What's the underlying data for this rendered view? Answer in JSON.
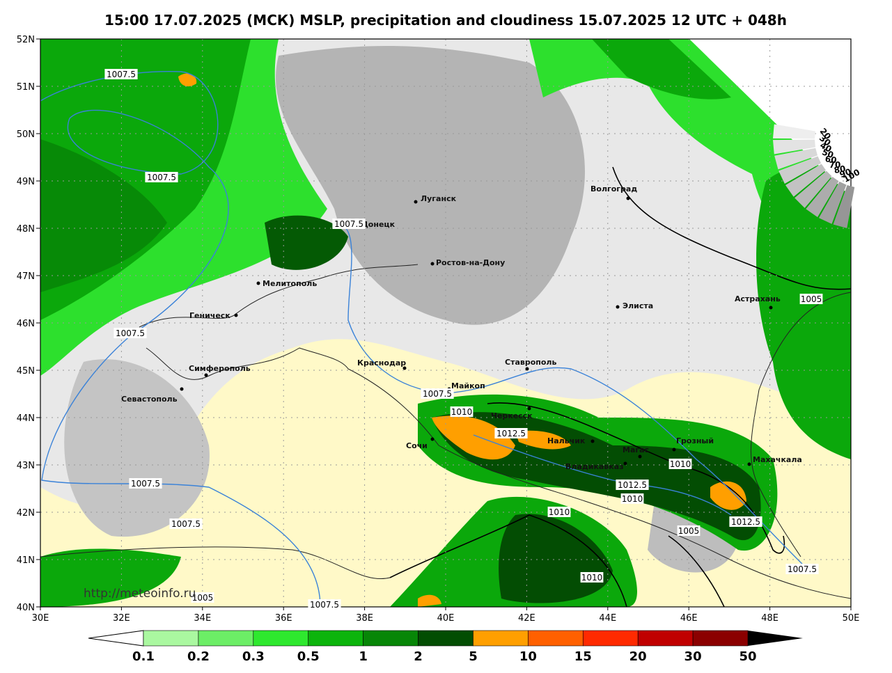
{
  "title": "15:00 17.07.2025 (МСК) MSLP, precipitation and cloudiness 15.07.2025 12 UTC + 048h",
  "lat_labels": [
    "40N",
    "41N",
    "42N",
    "43N",
    "44N",
    "45N",
    "46N",
    "47N",
    "48N",
    "49N",
    "50N",
    "51N",
    "52N"
  ],
  "lon_labels": [
    "30E",
    "32E",
    "34E",
    "36E",
    "38E",
    "40E",
    "42E",
    "44E",
    "46E",
    "48E",
    "50E"
  ],
  "cities": [
    "Луганск",
    "Донецк",
    "Ростов-на-Дону",
    "Мелитополь",
    "Геническ",
    "Симферополь",
    "Севастополь",
    "Краснодар",
    "Майкоп",
    "Ставрополь",
    "Черкесск",
    "Сочи",
    "Нальчик",
    "Магас",
    "Грозный",
    "Владикавказ",
    "Махачкала",
    "Элиста",
    "Астрахань",
    "Волгоград"
  ],
  "isobars": [
    "1007.5",
    "1007.5",
    "1007.5",
    "1007.5",
    "1007.5",
    "1007.5",
    "1007.5",
    "1007.5",
    "1007.5",
    "1010",
    "1010",
    "1010",
    "1010",
    "1010",
    "1012.5",
    "1012.5",
    "1012.5",
    "1005",
    "1005",
    "1005"
  ],
  "precip_legend": [
    "0.1",
    "0.2",
    "0.3",
    "0.5",
    "1",
    "2",
    "5",
    "10",
    "15",
    "20",
    "30",
    "50"
  ],
  "cloud_legend": [
    "100",
    "90",
    "80",
    "70",
    "60",
    "50",
    "40",
    "30",
    "20"
  ],
  "watermark": "http://meteoinfo.ru"
}
